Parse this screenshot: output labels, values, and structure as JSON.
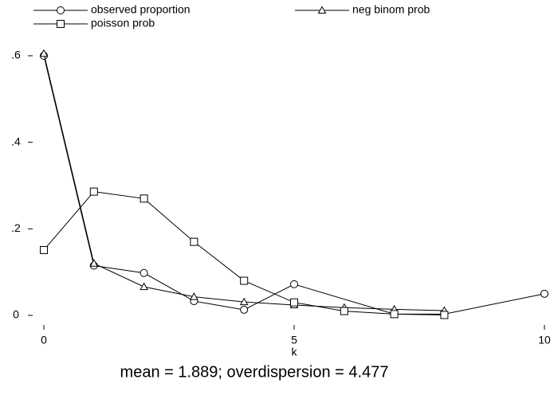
{
  "chart_data": {
    "type": "line",
    "x_label": "k",
    "note": "mean = 1.889; overdispersion = 4.477",
    "xlim": [
      0,
      10
    ],
    "xticks": [
      0,
      5,
      10
    ],
    "ylim": [
      0,
      0.6
    ],
    "yticks": [
      0,
      {
        "value": 0.2,
        "label": ".2"
      },
      {
        "value": 0.4,
        "label": ".4"
      },
      {
        "value": 0.6,
        "label": ".6"
      }
    ],
    "series": [
      {
        "name": "observed proportion",
        "color": "#000000",
        "marker": "circle",
        "x": [
          0,
          1,
          2,
          3,
          4,
          5,
          7,
          8,
          10
        ],
        "values": [
          0.6,
          0.115,
          0.098,
          0.033,
          0.013,
          0.072,
          0.003,
          0.003,
          0.05
        ]
      },
      {
        "name": "neg binom prob",
        "color": "#000000",
        "marker": "triangle",
        "x": [
          0,
          1,
          2,
          3,
          4,
          5,
          6,
          7,
          8
        ],
        "values": [
          0.605,
          0.12,
          0.066,
          0.043,
          0.031,
          0.024,
          0.018,
          0.014,
          0.011
        ]
      },
      {
        "name": "poisson prob",
        "color": "#000000",
        "marker": "square",
        "x": [
          0,
          1,
          2,
          3,
          4,
          5,
          6,
          7,
          8
        ],
        "values": [
          0.151,
          0.286,
          0.27,
          0.17,
          0.08,
          0.03,
          0.01,
          0.003,
          0.001
        ]
      }
    ]
  }
}
